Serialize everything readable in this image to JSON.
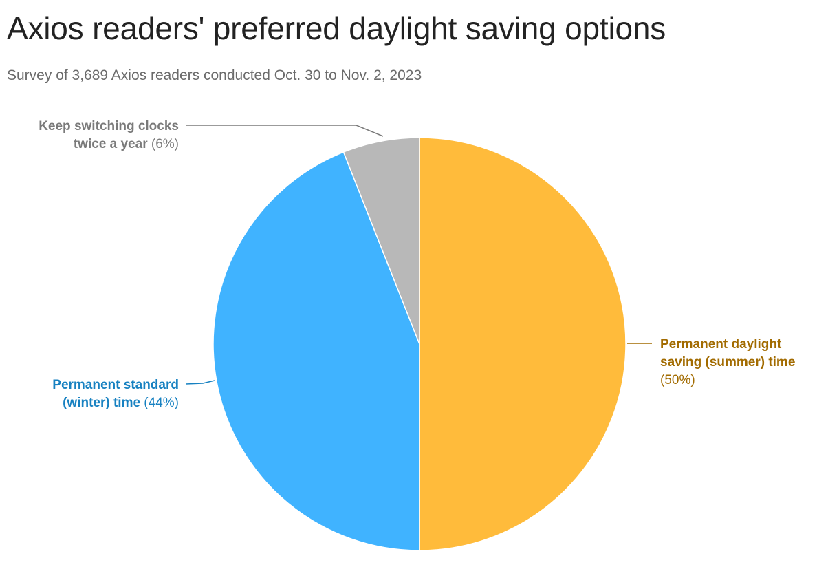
{
  "header": {
    "title": "Axios readers' preferred daylight saving options",
    "subtitle": "Survey of 3,689 Axios readers conducted Oct. 30 to Nov. 2, 2023"
  },
  "chart_data": {
    "type": "pie",
    "title": "Axios readers' preferred daylight saving options",
    "subtitle": "Survey of 3,689 Axios readers conducted Oct. 30 to Nov. 2, 2023",
    "unit": "%",
    "slices": [
      {
        "key": "summer",
        "label": "Permanent daylight saving (summer) time",
        "label_lines": [
          "Permanent daylight",
          "saving (summer) time"
        ],
        "value": 50,
        "pct_text": "(50%)",
        "color": "#ffbb3b",
        "label_color": "#a26b00"
      },
      {
        "key": "winter",
        "label": "Permanent standard (winter) time",
        "label_lines": [
          "Permanent standard",
          "(winter) time"
        ],
        "value": 44,
        "pct_text": "(44%)",
        "color": "#40b3ff",
        "label_color": "#1781c1"
      },
      {
        "key": "switch",
        "label": "Keep switching clocks twice a year",
        "label_lines": [
          "Keep switching clocks",
          "twice a year"
        ],
        "value": 6,
        "pct_text": "(6%)",
        "color": "#b8b8b8",
        "label_color": "#7a7a7a"
      }
    ]
  }
}
